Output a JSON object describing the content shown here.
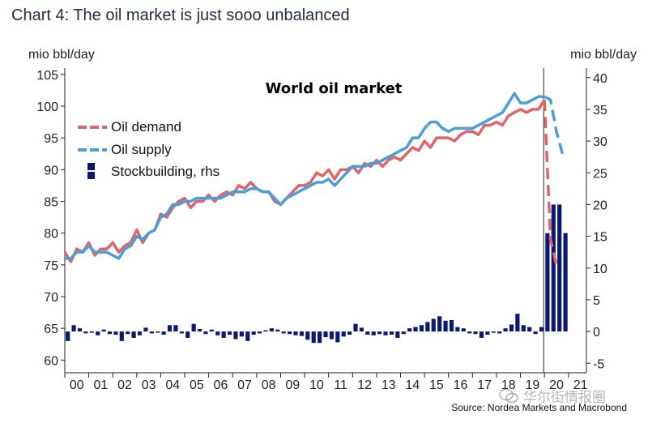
{
  "header": {
    "title": "Chart 4: The oil market is just sooo unbalanced"
  },
  "source": "Source: Nordea Markets and Macrobond",
  "watermark": "华尔街情报圈",
  "colors": {
    "demand": "#e06566",
    "supply": "#4a9fd9",
    "stock": "#0a1a6e",
    "axis": "#222222"
  },
  "chart_data": {
    "type": "line+bar",
    "title": "World oil market",
    "ylabel_left": "mio bbl/day",
    "ylabel_right": "mio bbl/day",
    "ylim_left": [
      58,
      106
    ],
    "ylim_right": [
      -6.5,
      41.5
    ],
    "yticks_left": [
      60,
      65,
      70,
      75,
      80,
      85,
      90,
      95,
      100,
      105
    ],
    "yticks_right": [
      -5,
      0,
      5,
      10,
      15,
      20,
      25,
      30,
      35,
      40
    ],
    "xlim": [
      2000.0,
      2021.75
    ],
    "xtick_labels": [
      "00",
      "01",
      "02",
      "03",
      "04",
      "05",
      "06",
      "07",
      "08",
      "09",
      "10",
      "11",
      "12",
      "13",
      "14",
      "15",
      "16",
      "17",
      "18",
      "19",
      "20",
      "21"
    ],
    "legend": [
      "Oil demand",
      "Oil supply",
      "Stockbuilding, rhs"
    ],
    "series": [
      {
        "name": "Oil demand",
        "axis": "left",
        "x": [
          2000.0,
          2000.25,
          2000.5,
          2000.75,
          2001.0,
          2001.25,
          2001.5,
          2001.75,
          2002.0,
          2002.25,
          2002.5,
          2002.75,
          2003.0,
          2003.25,
          2003.5,
          2003.75,
          2004.0,
          2004.25,
          2004.5,
          2004.75,
          2005.0,
          2005.25,
          2005.5,
          2005.75,
          2006.0,
          2006.25,
          2006.5,
          2006.75,
          2007.0,
          2007.25,
          2007.5,
          2007.75,
          2008.0,
          2008.25,
          2008.5,
          2008.75,
          2009.0,
          2009.25,
          2009.5,
          2009.75,
          2010.0,
          2010.25,
          2010.5,
          2010.75,
          2011.0,
          2011.25,
          2011.5,
          2011.75,
          2012.0,
          2012.25,
          2012.5,
          2012.75,
          2013.0,
          2013.25,
          2013.5,
          2013.75,
          2014.0,
          2014.25,
          2014.5,
          2014.75,
          2015.0,
          2015.25,
          2015.5,
          2015.75,
          2016.0,
          2016.25,
          2016.5,
          2016.75,
          2017.0,
          2017.25,
          2017.5,
          2017.75,
          2018.0,
          2018.25,
          2018.5,
          2018.75,
          2019.0,
          2019.25,
          2019.5,
          2019.75,
          2020.0
        ],
        "values": [
          77,
          75.5,
          77.5,
          77,
          78.5,
          76.5,
          77.5,
          77.5,
          78.5,
          77,
          78,
          78.5,
          80.5,
          78.5,
          80,
          80.5,
          83,
          82.5,
          84,
          85,
          85.5,
          84,
          85,
          85,
          86,
          85,
          86,
          86.5,
          86,
          87.5,
          87,
          88,
          87,
          86.5,
          86.5,
          85,
          84.5,
          85.5,
          86.5,
          87.5,
          87.5,
          88,
          89.5,
          89,
          90,
          88.5,
          90,
          90,
          90.5,
          89.5,
          91,
          90.5,
          91.5,
          90.5,
          91.5,
          92,
          91.5,
          92.5,
          93.5,
          93,
          94.5,
          93.5,
          95,
          95,
          95,
          94.5,
          95.5,
          96,
          96,
          95.5,
          97,
          97,
          97.5,
          97,
          98.5,
          99,
          99.5,
          99,
          99.5,
          99.5,
          101
        ]
      },
      {
        "name": "Oil demand (projection)",
        "axis": "left",
        "dashed": true,
        "x": [
          2020.0,
          2020.25,
          2020.5
        ],
        "values": [
          101,
          79,
          75
        ]
      },
      {
        "name": "Oil supply",
        "axis": "left",
        "x": [
          2000.0,
          2000.25,
          2000.5,
          2000.75,
          2001.0,
          2001.25,
          2001.5,
          2001.75,
          2002.0,
          2002.25,
          2002.5,
          2002.75,
          2003.0,
          2003.25,
          2003.5,
          2003.75,
          2004.0,
          2004.25,
          2004.5,
          2004.75,
          2005.0,
          2005.25,
          2005.5,
          2005.75,
          2006.0,
          2006.25,
          2006.5,
          2006.75,
          2007.0,
          2007.25,
          2007.5,
          2007.75,
          2008.0,
          2008.25,
          2008.5,
          2008.75,
          2009.0,
          2009.25,
          2009.5,
          2009.75,
          2010.0,
          2010.25,
          2010.5,
          2010.75,
          2011.0,
          2011.25,
          2011.5,
          2011.75,
          2012.0,
          2012.25,
          2012.5,
          2012.75,
          2013.0,
          2013.25,
          2013.5,
          2013.75,
          2014.0,
          2014.25,
          2014.5,
          2014.75,
          2015.0,
          2015.25,
          2015.5,
          2015.75,
          2016.0,
          2016.25,
          2016.5,
          2016.75,
          2017.0,
          2017.25,
          2017.5,
          2017.75,
          2018.0,
          2018.25,
          2018.5,
          2018.75,
          2019.0,
          2019.25,
          2019.5,
          2019.75,
          2020.0
        ],
        "values": [
          76,
          76,
          77,
          77,
          78,
          77,
          77,
          77,
          76.5,
          76,
          77.5,
          78,
          79.5,
          79,
          80,
          80.5,
          82.5,
          83,
          84.5,
          84.5,
          85,
          85,
          85.5,
          85.5,
          85.5,
          85.5,
          85.5,
          86,
          86.5,
          86.5,
          86.5,
          87,
          87,
          86.5,
          86.5,
          85.5,
          84.5,
          85.5,
          86,
          86.5,
          87,
          87.5,
          88,
          88,
          88.5,
          87.5,
          88.5,
          89.5,
          90.5,
          90.5,
          90.5,
          91,
          91,
          91.5,
          92,
          92.5,
          93,
          93.5,
          95,
          95,
          96.5,
          97.5,
          97.5,
          96.5,
          96,
          96.5,
          96.5,
          96.5,
          96.5,
          97,
          97.5,
          98,
          98.5,
          99,
          100.5,
          102,
          100.5,
          100.5,
          101,
          101.5,
          101.5
        ]
      },
      {
        "name": "Oil supply (projection)",
        "axis": "left",
        "dashed": true,
        "x": [
          2020.0,
          2020.25,
          2020.5,
          2020.75
        ],
        "values": [
          101.5,
          101,
          96,
          92.5
        ]
      },
      {
        "name": "Stockbuilding, rhs",
        "axis": "right",
        "type": "bar",
        "x": [
          2000.0,
          2000.25,
          2000.5,
          2000.75,
          2001.0,
          2001.25,
          2001.5,
          2001.75,
          2002.0,
          2002.25,
          2002.5,
          2002.75,
          2003.0,
          2003.25,
          2003.5,
          2003.75,
          2004.0,
          2004.25,
          2004.5,
          2004.75,
          2005.0,
          2005.25,
          2005.5,
          2005.75,
          2006.0,
          2006.25,
          2006.5,
          2006.75,
          2007.0,
          2007.25,
          2007.5,
          2007.75,
          2008.0,
          2008.25,
          2008.5,
          2008.75,
          2009.0,
          2009.25,
          2009.5,
          2009.75,
          2010.0,
          2010.25,
          2010.5,
          2010.75,
          2011.0,
          2011.25,
          2011.5,
          2011.75,
          2012.0,
          2012.25,
          2012.5,
          2012.75,
          2013.0,
          2013.25,
          2013.5,
          2013.75,
          2014.0,
          2014.25,
          2014.5,
          2014.75,
          2015.0,
          2015.25,
          2015.5,
          2015.75,
          2016.0,
          2016.25,
          2016.5,
          2016.75,
          2017.0,
          2017.25,
          2017.5,
          2017.75,
          2018.0,
          2018.25,
          2018.5,
          2018.75,
          2019.0,
          2019.25,
          2019.5,
          2019.75,
          2020.0,
          2020.25,
          2020.5,
          2020.75
        ],
        "values": [
          -1.5,
          1,
          0.5,
          -0.3,
          -0.2,
          -0.6,
          0.3,
          -0.4,
          -0.5,
          -1.5,
          -0.4,
          -1,
          -0.6,
          0.6,
          -0.3,
          -0.2,
          -0.5,
          1,
          1,
          -0.3,
          -1,
          1.2,
          0.4,
          -0.4,
          0.3,
          -0.6,
          -1,
          -0.5,
          -1.2,
          -0.8,
          -1.5,
          -0.5,
          -0.3,
          0.2,
          0.5,
          0.3,
          -0.3,
          -0.4,
          -0.6,
          -0.7,
          -1.3,
          -1.8,
          -1.8,
          -0.9,
          -1.2,
          -1.7,
          -0.8,
          -0.5,
          1.2,
          0.6,
          -0.5,
          -0.6,
          -0.4,
          -0.6,
          -0.5,
          -1,
          -0.4,
          0.5,
          0.7,
          1,
          1.5,
          2,
          2.4,
          1.7,
          1.8,
          0.7,
          0.5,
          -0.3,
          -0.4,
          -1,
          -0.5,
          -0.2,
          -0.3,
          0.5,
          1.1,
          2.8,
          1,
          0.7,
          -0.4,
          0.7,
          15.5,
          20,
          20,
          15.5
        ]
      }
    ]
  }
}
